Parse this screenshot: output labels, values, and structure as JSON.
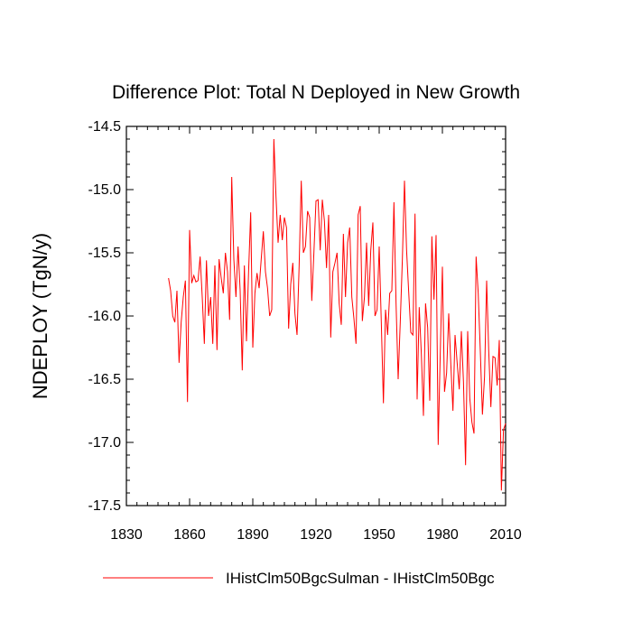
{
  "chart_data": {
    "type": "line",
    "title": "Difference Plot: Total N Deployed in New Growth",
    "xlabel": "",
    "ylabel": "NDEPLOY  (TgN/y)",
    "xlim": [
      1830,
      2010
    ],
    "ylim": [
      -17.5,
      -14.5
    ],
    "x_ticks": [
      1830,
      1860,
      1890,
      1920,
      1950,
      1980,
      2010
    ],
    "x_tick_labels": [
      "1830",
      "1860",
      "1890",
      "1920",
      "1950",
      "1980",
      "2010"
    ],
    "y_ticks": [
      -14.5,
      -15.0,
      -15.5,
      -16.0,
      -16.5,
      -17.0,
      -17.5
    ],
    "y_tick_labels": [
      "-14.5",
      "-15.0",
      "-15.5",
      "-16.0",
      "-16.5",
      "-17.0",
      "-17.5"
    ],
    "grid": false,
    "legend_position": "bottom",
    "series": [
      {
        "name": "IHistClm50BgcSulman - IHistClm50Bgc",
        "color": "#ff0000",
        "x": [
          1850,
          1851,
          1852,
          1853,
          1854,
          1855,
          1856,
          1857,
          1858,
          1859,
          1860,
          1861,
          1862,
          1863,
          1864,
          1865,
          1866,
          1867,
          1868,
          1869,
          1870,
          1871,
          1872,
          1873,
          1874,
          1875,
          1876,
          1877,
          1878,
          1879,
          1880,
          1881,
          1882,
          1883,
          1884,
          1885,
          1886,
          1887,
          1888,
          1889,
          1890,
          1891,
          1892,
          1893,
          1894,
          1895,
          1896,
          1897,
          1898,
          1899,
          1900,
          1901,
          1902,
          1903,
          1904,
          1905,
          1906,
          1907,
          1908,
          1909,
          1910,
          1911,
          1912,
          1913,
          1914,
          1915,
          1916,
          1917,
          1918,
          1919,
          1920,
          1921,
          1922,
          1923,
          1924,
          1925,
          1926,
          1927,
          1928,
          1929,
          1930,
          1931,
          1932,
          1933,
          1934,
          1935,
          1936,
          1937,
          1938,
          1939,
          1940,
          1941,
          1942,
          1943,
          1944,
          1945,
          1946,
          1947,
          1948,
          1949,
          1950,
          1951,
          1952,
          1953,
          1954,
          1955,
          1956,
          1957,
          1958,
          1959,
          1960,
          1961,
          1962,
          1963,
          1964,
          1965,
          1966,
          1967,
          1968,
          1969,
          1970,
          1971,
          1972,
          1973,
          1974,
          1975,
          1976,
          1977,
          1978,
          1979,
          1980,
          1981,
          1982,
          1983,
          1984,
          1985,
          1986,
          1987,
          1988,
          1989,
          1990,
          1991,
          1992,
          1993,
          1994,
          1995,
          1996,
          1997,
          1998,
          1999,
          2000,
          2001,
          2002,
          2003,
          2004,
          2005,
          2006,
          2007,
          2008,
          2009,
          2010
        ],
        "values": [
          -15.7,
          -15.8,
          -16.0,
          -16.05,
          -15.8,
          -16.37,
          -16.05,
          -15.85,
          -15.72,
          -16.68,
          -15.32,
          -15.74,
          -15.68,
          -15.73,
          -15.72,
          -15.53,
          -15.85,
          -16.22,
          -15.56,
          -16.0,
          -15.85,
          -16.22,
          -15.6,
          -16.27,
          -15.55,
          -15.7,
          -15.82,
          -15.5,
          -15.65,
          -16.03,
          -14.9,
          -15.55,
          -15.85,
          -15.45,
          -15.8,
          -16.43,
          -15.6,
          -16.2,
          -15.65,
          -15.18,
          -16.25,
          -15.82,
          -15.66,
          -15.78,
          -15.55,
          -15.33,
          -15.65,
          -15.78,
          -16.0,
          -15.95,
          -14.6,
          -15.05,
          -15.42,
          -15.2,
          -15.4,
          -15.22,
          -15.3,
          -16.1,
          -15.75,
          -15.58,
          -15.98,
          -16.15,
          -15.6,
          -14.93,
          -15.5,
          -15.45,
          -15.17,
          -15.22,
          -15.88,
          -15.5,
          -15.09,
          -15.08,
          -15.48,
          -15.08,
          -15.25,
          -15.62,
          -15.2,
          -16.17,
          -15.65,
          -15.58,
          -15.5,
          -15.9,
          -16.07,
          -15.35,
          -15.85,
          -15.42,
          -15.3,
          -15.85,
          -16.02,
          -16.22,
          -15.2,
          -15.13,
          -16.04,
          -15.85,
          -15.42,
          -15.92,
          -15.48,
          -15.26,
          -16.0,
          -15.95,
          -15.45,
          -16.05,
          -16.69,
          -15.95,
          -16.15,
          -15.82,
          -15.8,
          -15.1,
          -15.9,
          -16.5,
          -16.05,
          -15.55,
          -14.93,
          -15.48,
          -15.81,
          -16.13,
          -16.15,
          -15.19,
          -16.66,
          -15.93,
          -16.3,
          -16.79,
          -15.9,
          -16.09,
          -16.67,
          -15.37,
          -15.87,
          -15.36,
          -17.02,
          -16.28,
          -15.61,
          -16.6,
          -16.45,
          -15.98,
          -16.38,
          -16.75,
          -16.15,
          -16.37,
          -16.58,
          -16.12,
          -16.52,
          -17.18,
          -16.12,
          -16.65,
          -16.84,
          -16.93,
          -15.53,
          -15.82,
          -16.28,
          -16.78,
          -16.48,
          -15.72,
          -16.28,
          -16.72,
          -16.32,
          -16.33,
          -16.55,
          -16.19,
          -17.38,
          -16.9,
          -16.85
        ]
      }
    ]
  }
}
